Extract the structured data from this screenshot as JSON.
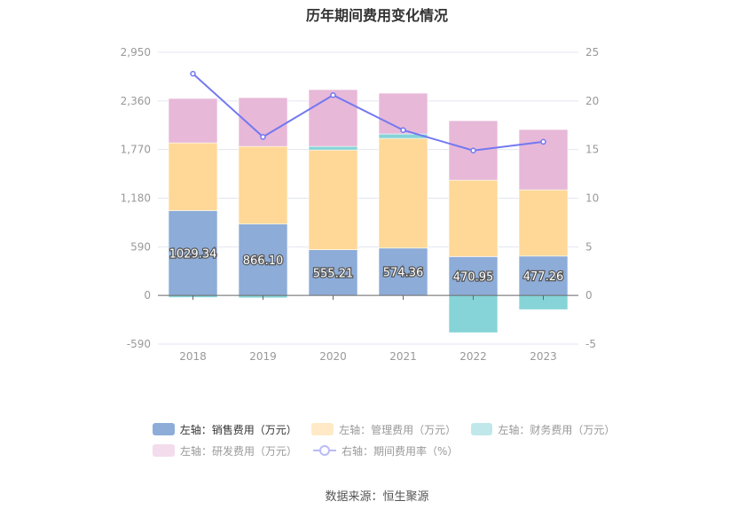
{
  "chart_data": {
    "type": "bar",
    "title": "历年期间费用变化情况",
    "categories": [
      "2018",
      "2019",
      "2020",
      "2021",
      "2022",
      "2023"
    ],
    "left_axis": {
      "ylim": [
        -590,
        2950
      ],
      "ticks": [
        "-590",
        "0",
        "590",
        "1,180",
        "1,770",
        "2,360",
        "2,950"
      ],
      "tick_values": [
        -590,
        0,
        590,
        1180,
        1770,
        2360,
        2950
      ]
    },
    "right_axis": {
      "ylim": [
        -5,
        25
      ],
      "ticks": [
        "-5",
        "0",
        "5",
        "10",
        "15",
        "20",
        "25"
      ],
      "tick_values": [
        -5,
        0,
        5,
        10,
        15,
        20,
        25
      ]
    },
    "grid": true,
    "legend_position": "bottom",
    "series": [
      {
        "name": "左轴：销售费用（万元）",
        "type": "bar",
        "axis": "left",
        "color": "#8dacd8",
        "legend_color": "#8dacd8",
        "values": [
          1029.34,
          866.1,
          555.21,
          574.36,
          470.95,
          477.26
        ],
        "labels": [
          "1029.34",
          "866.10",
          "555.21",
          "574.36",
          "470.95",
          "477.26"
        ]
      },
      {
        "name": "左轴：管理费用（万元）",
        "type": "bar",
        "axis": "left",
        "color": "#ffd897",
        "legend_color": "#ffe9c6",
        "values": [
          822,
          942,
          1210,
          1331,
          928,
          804
        ]
      },
      {
        "name": "左轴：财务费用（万元）",
        "type": "bar",
        "axis": "left",
        "color": "#86d4d7",
        "legend_color": "#c0e8ea",
        "values": [
          -25,
          -30,
          43,
          54,
          -452,
          -172
        ]
      },
      {
        "name": "左轴：研发费用（万元）",
        "type": "bar",
        "axis": "left",
        "color": "#e7b8d8",
        "legend_color": "#f3dcec",
        "values": [
          539,
          592,
          689,
          495,
          721,
          732
        ]
      },
      {
        "name": "右轴：期间费用率（%）",
        "type": "line",
        "axis": "right",
        "color": "#7378f0",
        "values": [
          22.8,
          16.3,
          20.6,
          17.0,
          14.9,
          15.8
        ]
      }
    ]
  },
  "source": "数据来源：恒生聚源"
}
